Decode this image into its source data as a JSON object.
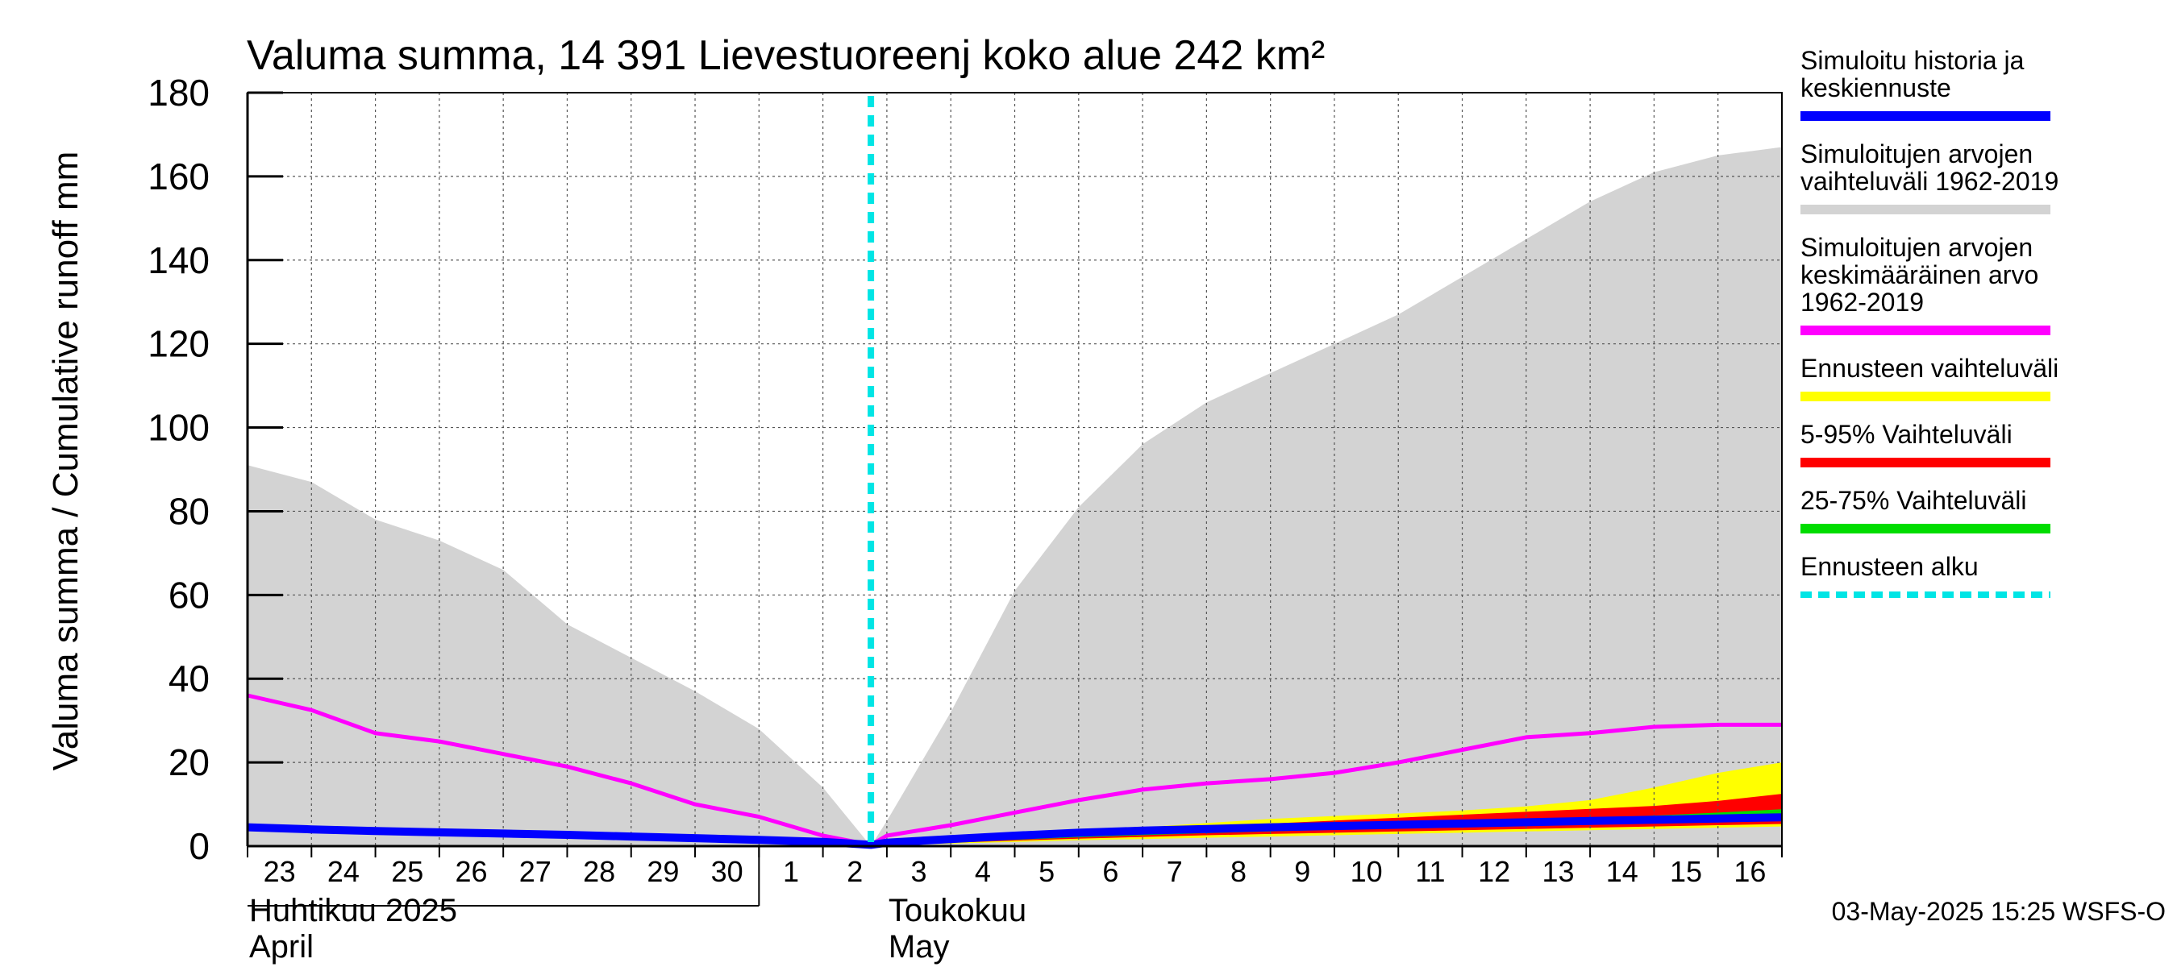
{
  "chart_data": {
    "type": "area",
    "title": "Valuma summa, 14 391 Lievestuoreenj koko alue 242 km²",
    "ylabel": "Valuma summa / Cumulative runoff    mm",
    "ylim": [
      0,
      180
    ],
    "yticks": [
      "0",
      "20",
      "40",
      "60",
      "80",
      "100",
      "120",
      "140",
      "160",
      "180"
    ],
    "x_start": "2025-04-23",
    "x_end": "2025-05-17",
    "x_tick_labels": [
      "23",
      "24",
      "25",
      "26",
      "27",
      "28",
      "29",
      "30",
      "1",
      "2",
      "3",
      "4",
      "5",
      "6",
      "7",
      "8",
      "9",
      "10",
      "11",
      "12",
      "13",
      "14",
      "15",
      "16"
    ],
    "months": [
      {
        "fi": "Huhtikuu  2025",
        "en": "April"
      },
      {
        "fi": "Toukokuu",
        "en": "May"
      }
    ],
    "forecast_start": "2025-05-02T18:00",
    "timestamp": "03-May-2025 15:25 WSFS-O",
    "grid": true,
    "legend_position": "right",
    "series": [
      {
        "name": "Simuloitujen arvojen vaihteluväli 1962-2019",
        "kind": "band",
        "color": "#d3d3d3",
        "x": [
          "2025-04-23",
          "2025-04-24",
          "2025-04-25",
          "2025-04-26",
          "2025-04-27",
          "2025-04-28",
          "2025-04-29",
          "2025-04-30",
          "2025-05-01",
          "2025-05-02",
          "2025-05-02T18:00",
          "2025-05-03",
          "2025-05-04",
          "2025-05-05",
          "2025-05-06",
          "2025-05-07",
          "2025-05-08",
          "2025-05-09",
          "2025-05-10",
          "2025-05-11",
          "2025-05-12",
          "2025-05-13",
          "2025-05-14",
          "2025-05-15",
          "2025-05-16",
          "2025-05-17"
        ],
        "upper": [
          91,
          87,
          78,
          73,
          66,
          53,
          45,
          37,
          28,
          14,
          0,
          6,
          32,
          61,
          81,
          96,
          106,
          113,
          120,
          127,
          136,
          145,
          154,
          161,
          165,
          167
        ],
        "lower": [
          0,
          0,
          0,
          0,
          0,
          0,
          0,
          0,
          0,
          0,
          0,
          0,
          0,
          0,
          0,
          0,
          0,
          0,
          0,
          0,
          0,
          0,
          0,
          0,
          0,
          0
        ]
      },
      {
        "name": "Ennusteen vaihteluväli",
        "kind": "band",
        "color": "#ffff00",
        "x": [
          "2025-05-02T18:00",
          "2025-05-03",
          "2025-05-04",
          "2025-05-05",
          "2025-05-06",
          "2025-05-07",
          "2025-05-08",
          "2025-05-09",
          "2025-05-10",
          "2025-05-11",
          "2025-05-12",
          "2025-05-13",
          "2025-05-14",
          "2025-05-15",
          "2025-05-16",
          "2025-05-17"
        ],
        "upper": [
          0,
          0.6,
          1.6,
          2.6,
          3.6,
          4.5,
          5.5,
          6.5,
          7.2,
          7.8,
          8.5,
          9.5,
          11,
          14,
          17.5,
          20
        ],
        "lower": [
          0,
          0.2,
          0.6,
          1,
          1.4,
          1.7,
          2,
          2.3,
          2.6,
          2.9,
          3.2,
          3.5,
          3.8,
          4.1,
          4.4,
          4.7
        ]
      },
      {
        "name": "5-95% Vaihteluväli",
        "kind": "band",
        "color": "#ff0000",
        "x": [
          "2025-05-02T18:00",
          "2025-05-03",
          "2025-05-04",
          "2025-05-05",
          "2025-05-06",
          "2025-05-07",
          "2025-05-08",
          "2025-05-09",
          "2025-05-10",
          "2025-05-11",
          "2025-05-12",
          "2025-05-13",
          "2025-05-14",
          "2025-05-15",
          "2025-05-16",
          "2025-05-17"
        ],
        "upper": [
          0,
          0.5,
          1.4,
          2.3,
          3.1,
          3.9,
          4.7,
          5.4,
          6.1,
          6.8,
          7.5,
          8.2,
          8.9,
          9.6,
          10.8,
          12.5
        ],
        "lower": [
          0,
          0.3,
          0.8,
          1.3,
          1.8,
          2.2,
          2.6,
          2.9,
          3.2,
          3.5,
          3.8,
          4.1,
          4.4,
          4.7,
          5,
          5.3
        ]
      },
      {
        "name": "25-75% Vaihteluväli",
        "kind": "band",
        "color": "#00dd00",
        "x": [
          "2025-05-02T18:00",
          "2025-05-03",
          "2025-05-04",
          "2025-05-05",
          "2025-05-06",
          "2025-05-07",
          "2025-05-08",
          "2025-05-09",
          "2025-05-10",
          "2025-05-11",
          "2025-05-12",
          "2025-05-13",
          "2025-05-14",
          "2025-05-15",
          "2025-05-16",
          "2025-05-17"
        ],
        "upper": [
          0,
          0.4,
          1.1,
          1.8,
          2.5,
          3.1,
          3.7,
          4.2,
          4.7,
          5.2,
          5.7,
          6.2,
          6.7,
          7.3,
          8,
          8.8
        ],
        "lower": [
          0,
          0.35,
          0.9,
          1.5,
          2.1,
          2.6,
          3.1,
          3.5,
          3.9,
          4.3,
          4.7,
          5.1,
          5.5,
          5.9,
          6.3,
          6.7
        ]
      },
      {
        "name": "Simuloitujen arvojen keskimääräinen arvo 1962-2019",
        "kind": "line",
        "color": "#ff00ff",
        "x": [
          "2025-04-23",
          "2025-04-24",
          "2025-04-25",
          "2025-04-26",
          "2025-04-27",
          "2025-04-28",
          "2025-04-29",
          "2025-04-30",
          "2025-05-01",
          "2025-05-02",
          "2025-05-02T18:00",
          "2025-05-03",
          "2025-05-04",
          "2025-05-05",
          "2025-05-06",
          "2025-05-07",
          "2025-05-08",
          "2025-05-09",
          "2025-05-10",
          "2025-05-11",
          "2025-05-12",
          "2025-05-13",
          "2025-05-14",
          "2025-05-15",
          "2025-05-16",
          "2025-05-17"
        ],
        "y": [
          36,
          32.5,
          27,
          25,
          22,
          19,
          15,
          10,
          7,
          2.5,
          0.3,
          2.5,
          5,
          8,
          11,
          13.5,
          15,
          16,
          17.5,
          20,
          23,
          26,
          27,
          28.5,
          29,
          29
        ]
      },
      {
        "name": "Simuloitu historia ja keskiennuste",
        "kind": "line",
        "color": "#0000ff",
        "x": [
          "2025-04-23",
          "2025-04-24",
          "2025-04-25",
          "2025-04-26",
          "2025-04-27",
          "2025-04-28",
          "2025-04-29",
          "2025-04-30",
          "2025-05-01",
          "2025-05-02",
          "2025-05-02T18:00",
          "2025-05-03",
          "2025-05-04",
          "2025-05-05",
          "2025-05-06",
          "2025-05-07",
          "2025-05-08",
          "2025-05-09",
          "2025-05-10",
          "2025-05-11",
          "2025-05-12",
          "2025-05-13",
          "2025-05-14",
          "2025-05-15",
          "2025-05-16",
          "2025-05-17"
        ],
        "y": [
          4.5,
          4,
          3.6,
          3.3,
          3,
          2.7,
          2.3,
          1.9,
          1.5,
          1,
          0.3,
          0.8,
          1.7,
          2.5,
          3.2,
          3.7,
          4.1,
          4.5,
          4.8,
          5.1,
          5.4,
          5.7,
          6,
          6.3,
          6.6,
          6.9
        ]
      }
    ],
    "legend": [
      {
        "lines": [
          "Simuloitu historia ja",
          "keskiennuste"
        ],
        "color": "#0000ff",
        "style": "solid"
      },
      {
        "lines": [
          "Simuloitujen arvojen",
          "vaihteluväli 1962-2019"
        ],
        "color": "#d3d3d3",
        "style": "solid"
      },
      {
        "lines": [
          "Simuloitujen arvojen",
          "keskimääräinen arvo",
          "   1962-2019"
        ],
        "color": "#ff00ff",
        "style": "solid"
      },
      {
        "lines": [
          "Ennusteen vaihteluväli"
        ],
        "color": "#ffff00",
        "style": "solid"
      },
      {
        "lines": [
          "5-95% Vaihteluväli"
        ],
        "color": "#ff0000",
        "style": "solid"
      },
      {
        "lines": [
          "25-75% Vaihteluväli"
        ],
        "color": "#00dd00",
        "style": "solid"
      },
      {
        "lines": [
          "Ennusteen alku"
        ],
        "color": "#00e5e5",
        "style": "dashed"
      }
    ]
  }
}
